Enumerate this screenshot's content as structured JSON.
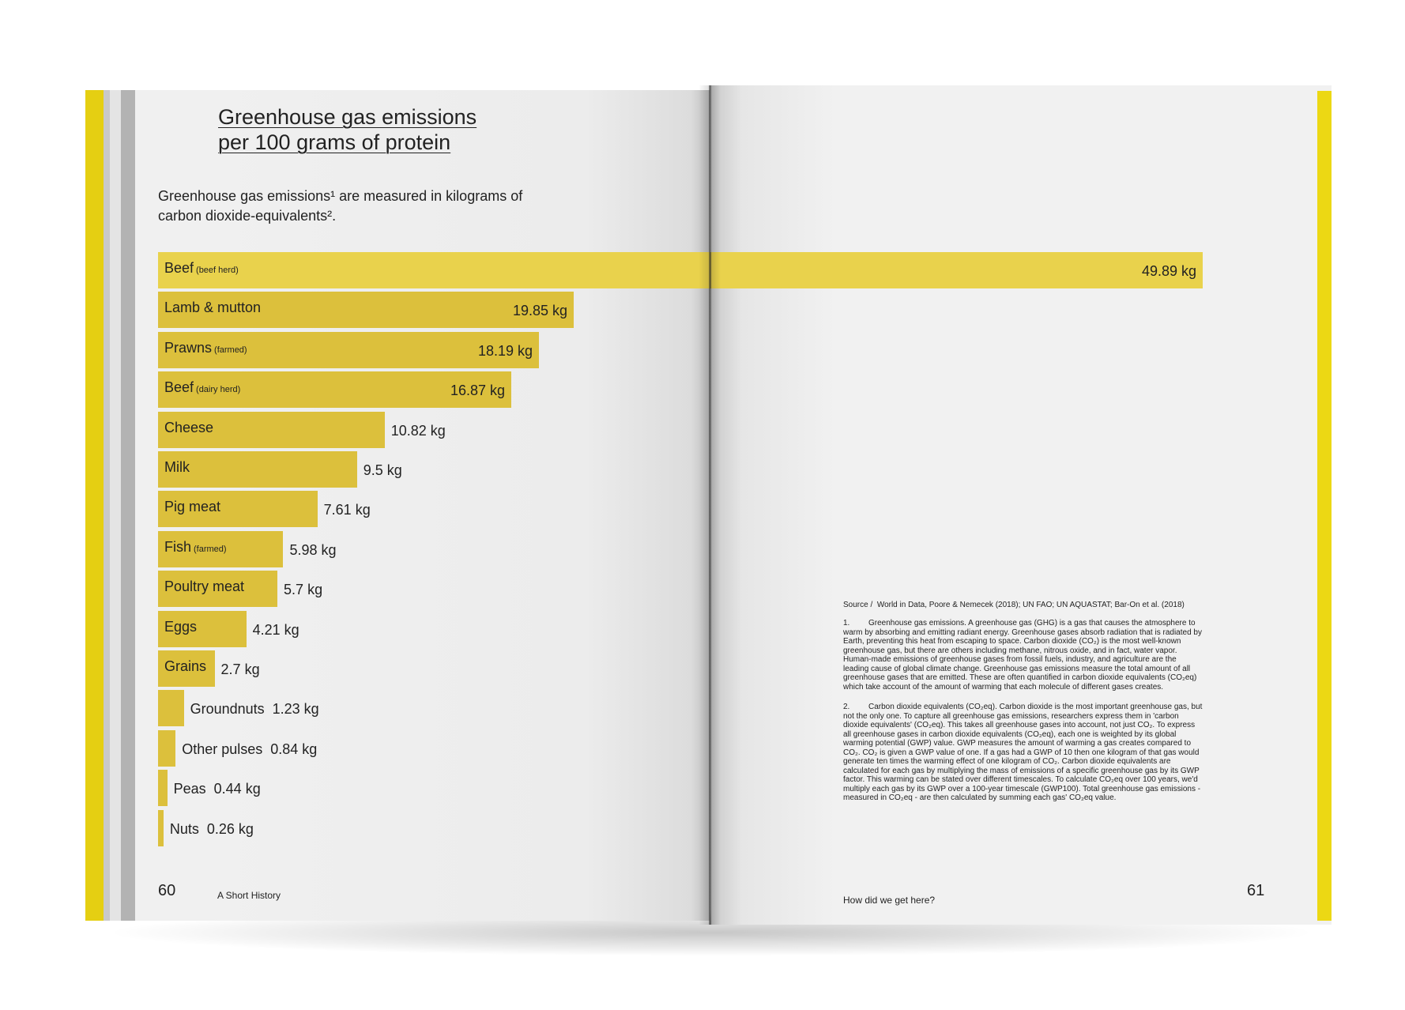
{
  "chart_data": {
    "type": "bar",
    "orientation": "horizontal",
    "title": "Greenhouse gas emissions per 100 grams of protein",
    "subtitle": "Greenhouse gas emissions¹ are measured in kilograms of carbon dioxide-equivalents².",
    "categories": [
      "Beef",
      "Lamb & mutton",
      "Prawns",
      "Beef",
      "Cheese",
      "Milk",
      "Pig meat",
      "Fish",
      "Poultry meat",
      "Eggs",
      "Grains",
      "Groundnuts",
      "Other pulses",
      "Peas",
      "Nuts"
    ],
    "category_notes": [
      "(beef herd)",
      null,
      "(farmed)",
      "(dairy herd)",
      null,
      null,
      null,
      "(farmed)",
      null,
      null,
      null,
      null,
      null,
      null,
      null
    ],
    "values": [
      49.89,
      19.85,
      18.19,
      16.87,
      10.82,
      9.5,
      7.61,
      5.98,
      5.7,
      4.21,
      2.7,
      1.23,
      0.84,
      0.44,
      0.26
    ],
    "value_labels": [
      "49.89 kg",
      "19.85 kg",
      "18.19 kg",
      "16.87 kg",
      "10.82 kg",
      "9.5 kg",
      "7.61 kg",
      "5.98 kg",
      "5.7 kg",
      "4.21 kg",
      "2.7 kg",
      "1.23 kg",
      "0.84 kg",
      "0.44 kg",
      "0.26 kg"
    ],
    "color": "#dcc03c",
    "highlight_color": "#e9d24c"
  },
  "left_page": {
    "number": "60",
    "running_title": "A Short History"
  },
  "right_page": {
    "number": "61",
    "running_title": "How did we get here?",
    "source_label": "Source /",
    "source": "World in Data, Poore & Nemecek (2018); UN FAO; UN AQUASTAT; Bar-On et al. (2018)",
    "footnotes": [
      {
        "number": "1.",
        "text": "Greenhouse gas emissions. A greenhouse gas (GHG) is a gas that causes the atmosphere to warm by absorbing and emitting radiant energy. Greenhouse gases absorb radiation that is radiated by Earth, preventing this heat from escaping to space. Carbon dioxide (CO₂) is the most well-known greenhouse gas, but there are others including methane, nitrous oxide, and in fact, water vapor. Human-made emissions of greenhouse gases from fossil fuels, industry, and agriculture are the leading cause of global climate change. Greenhouse gas emissions measure the total amount of all greenhouse gases that are emitted. These are often quantified in carbon dioxide equivalents (CO₂eq) which take account of the amount of warming that each molecule of different gases creates."
      },
      {
        "number": "2.",
        "text": "Carbon dioxide equivalents (CO₂eq). Carbon dioxide is the most important greenhouse gas, but not the only one. To capture all greenhouse gas emissions, researchers express them in 'carbon dioxide equivalents' (CO₂eq). This takes all greenhouse gases into account, not just CO₂. To express all greenhouse gases in carbon dioxide equivalents (CO₂eq), each one is weighted by its global warming potential (GWP) value. GWP measures the amount of warming a gas creates compared to CO₂. CO₂ is given a GWP value of one. If a gas had a GWP of 10 then one kilogram of that gas would generate ten times the warming effect of one kilogram of CO₂. Carbon dioxide equivalents are calculated for each gas by multiplying the mass of emissions of a specific greenhouse gas by its GWP factor. This warming can be stated over different timescales. To calculate CO₂eq over 100 years, we'd multiply each gas by its GWP over a 100-year timescale (GWP100). Total greenhouse gas emissions - measured in CO₂eq - are then calculated by summing each gas' CO₂eq value."
      }
    ]
  }
}
